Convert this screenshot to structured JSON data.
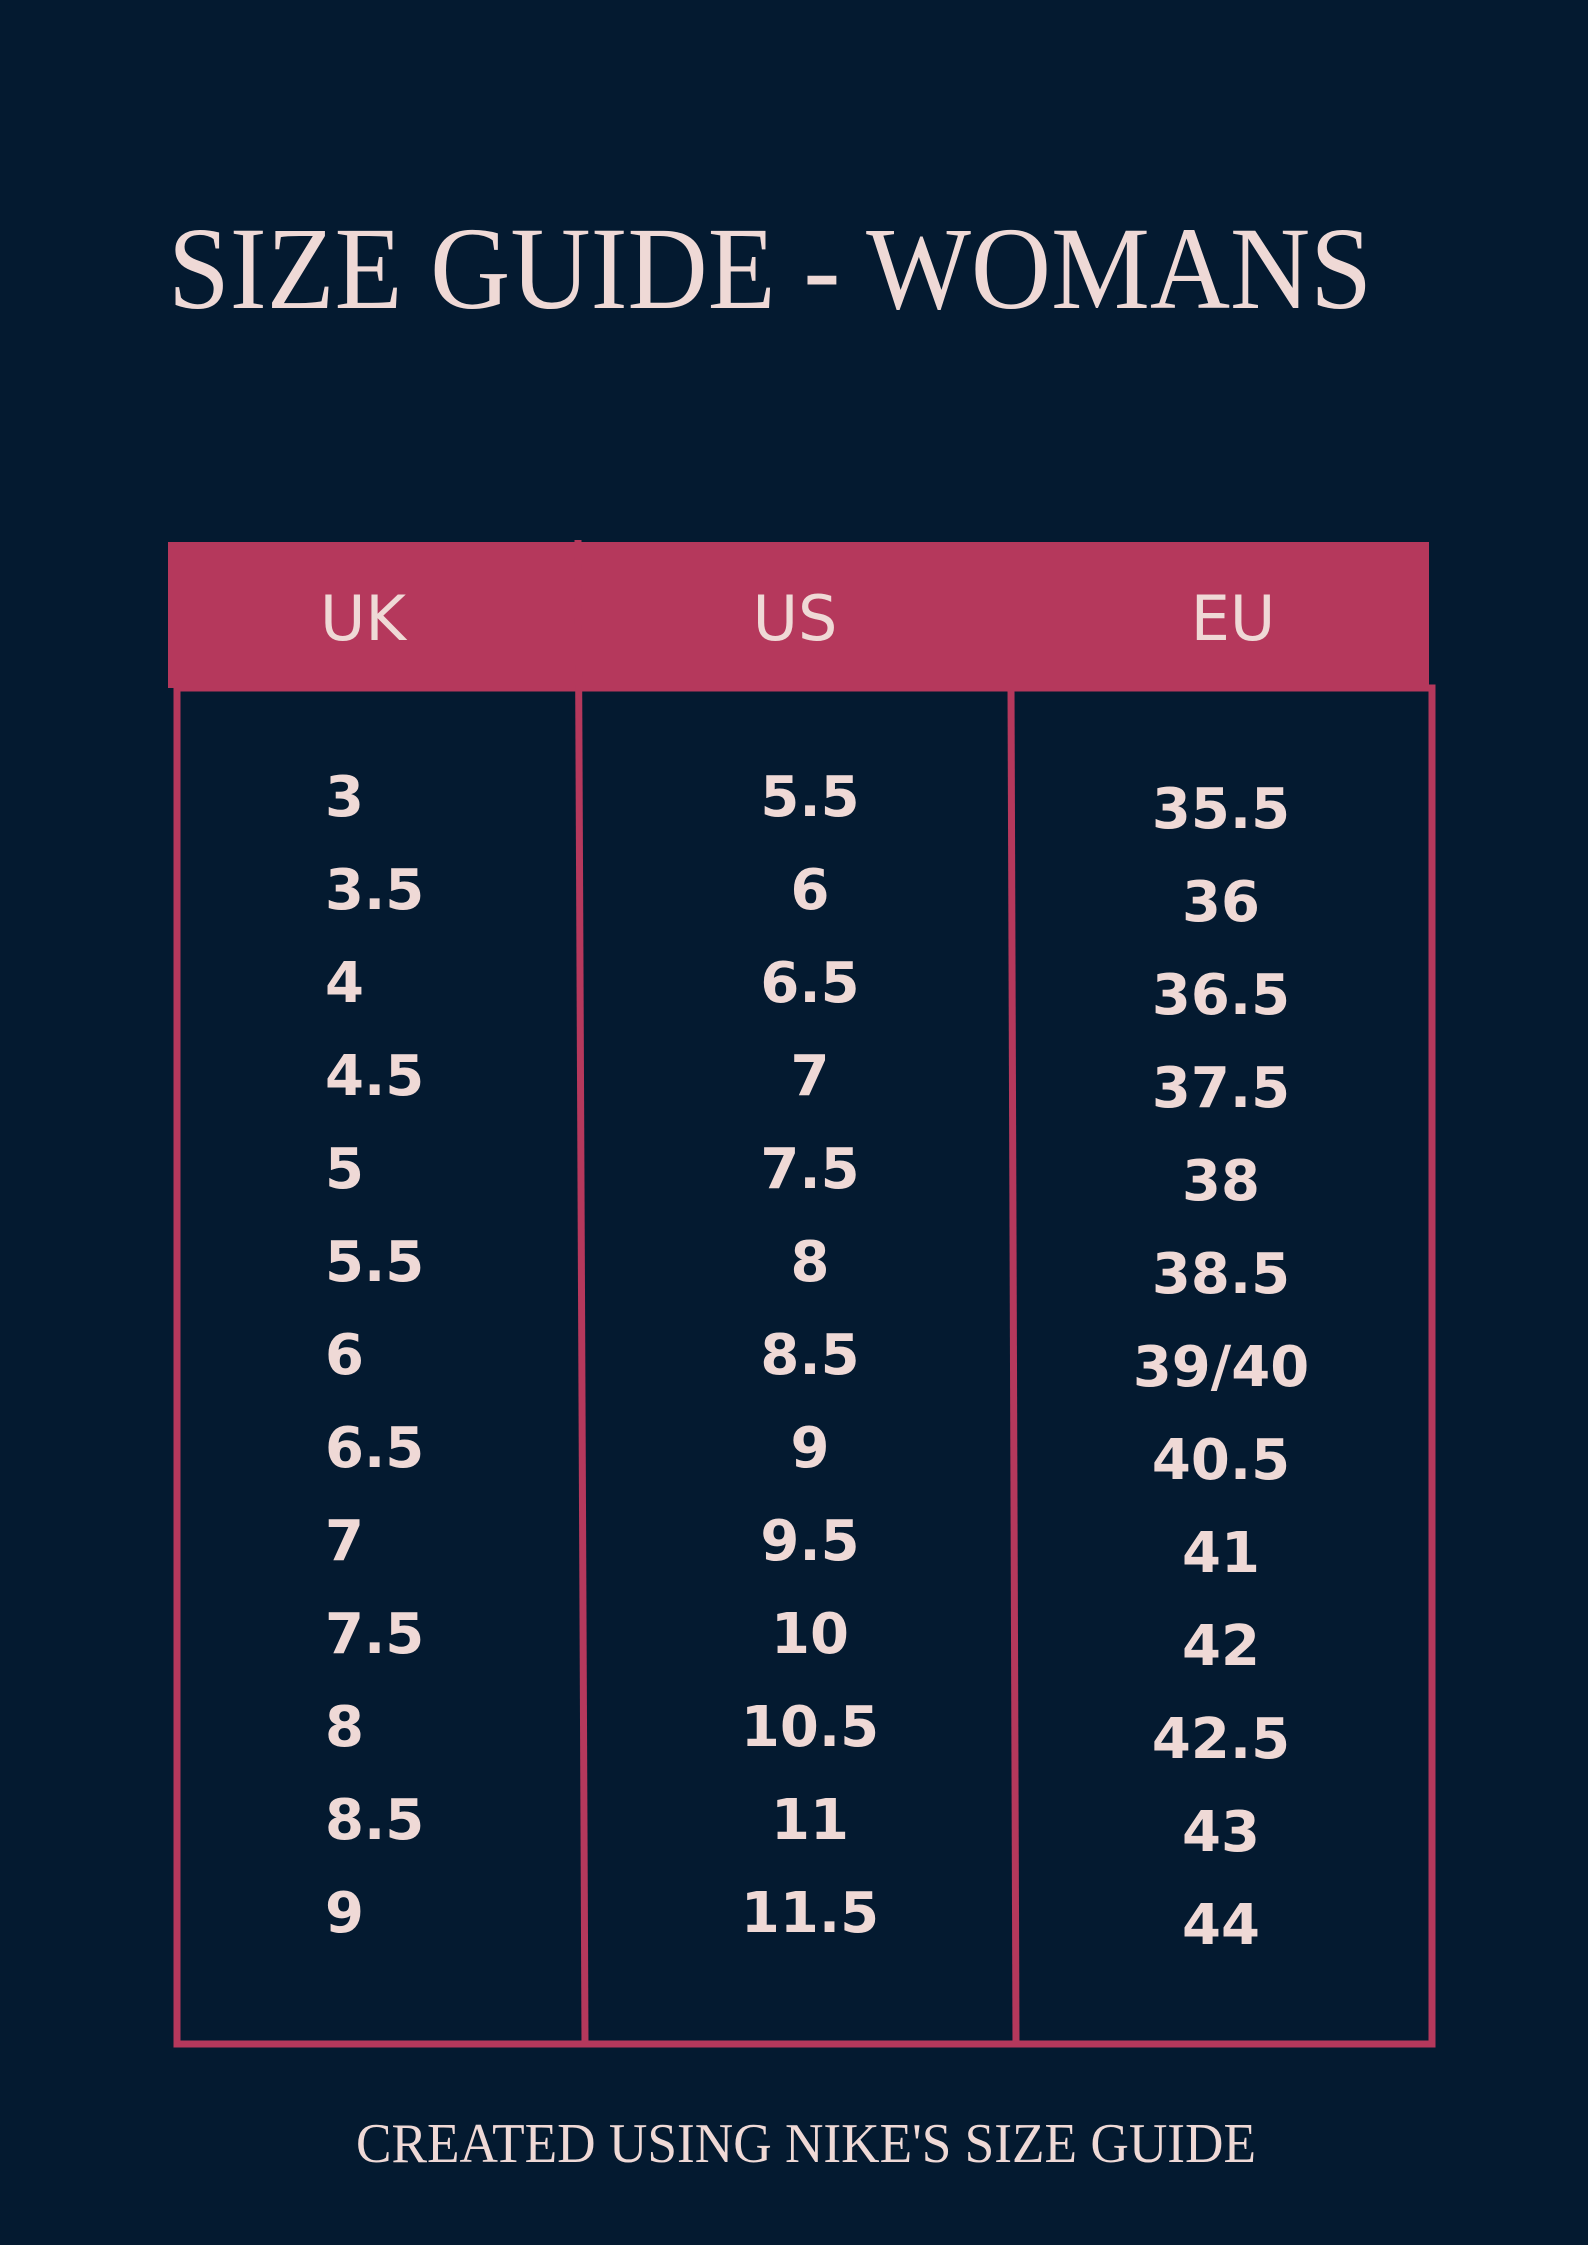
{
  "title": "SIZE GUIDE - WOMANS",
  "table": {
    "headers": [
      "UK",
      "US",
      "EU"
    ],
    "rows": [
      [
        "3",
        "5.5",
        "35.5"
      ],
      [
        "3.5",
        "6",
        "36"
      ],
      [
        "4",
        "6.5",
        "36.5"
      ],
      [
        "4.5",
        "7",
        "37.5"
      ],
      [
        "5",
        "7.5",
        "38"
      ],
      [
        "5.5",
        "8",
        "38.5"
      ],
      [
        "6",
        "8.5",
        "39/40"
      ],
      [
        "6.5",
        "9",
        "40.5"
      ],
      [
        "7",
        "9.5",
        "41"
      ],
      [
        "7.5",
        "10",
        "42"
      ],
      [
        "8",
        "10.5",
        "42.5"
      ],
      [
        "8.5",
        "11",
        "43"
      ],
      [
        "9",
        "11.5",
        "44"
      ]
    ]
  },
  "footer": "CREATED USING NIKE'S SIZE GUIDE"
}
